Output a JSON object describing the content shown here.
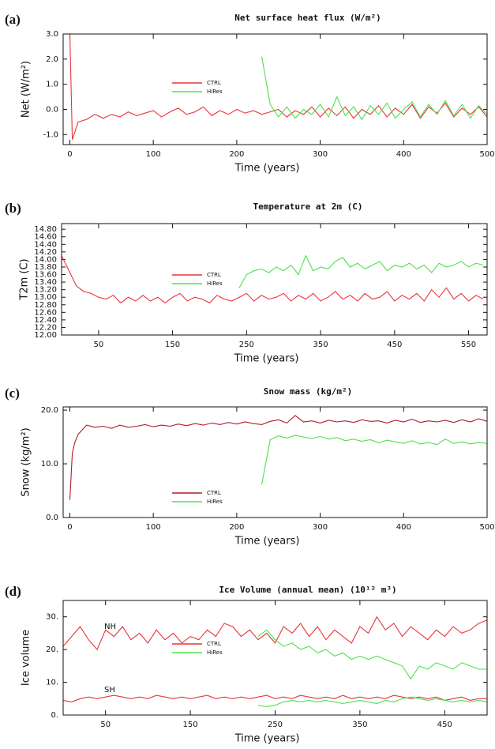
{
  "chart_data": [
    {
      "type": "line",
      "label": "(a)",
      "title": "Net surface heat flux (W/m²)",
      "ylabel": "Net (W/m²)",
      "xlabel": "Time (years)",
      "x": [
        0,
        3,
        6,
        10,
        20,
        30,
        40,
        50,
        60,
        70,
        80,
        90,
        100,
        110,
        120,
        130,
        140,
        150,
        160,
        170,
        180,
        190,
        200,
        210,
        220,
        230,
        240,
        250,
        260,
        270,
        280,
        290,
        300,
        310,
        320,
        330,
        340,
        350,
        360,
        370,
        380,
        390,
        400,
        410,
        420,
        430,
        440,
        450,
        460,
        470,
        480,
        490,
        500
      ],
      "xlim": [
        -8,
        500
      ],
      "xticks": [
        0,
        100,
        200,
        300,
        400,
        500
      ],
      "ylim": [
        -1.4,
        3.0
      ],
      "yticks": [
        {
          "value": -1,
          "label": "-1.0"
        },
        {
          "value": 0,
          "label": "0.0"
        },
        {
          "value": 1,
          "label": "1.0"
        },
        {
          "value": 2,
          "label": "2.0"
        },
        {
          "value": 3,
          "label": "3.0"
        }
      ],
      "series": [
        {
          "name": "CTRL",
          "color": "#e8343a",
          "values": [
            3.0,
            -1.2,
            -0.9,
            -0.5,
            -0.4,
            -0.2,
            -0.35,
            -0.2,
            -0.3,
            -0.1,
            -0.25,
            -0.15,
            -0.05,
            -0.3,
            -0.1,
            0.05,
            -0.2,
            -0.1,
            0.1,
            -0.25,
            -0.05,
            -0.2,
            0.0,
            -0.15,
            -0.05,
            -0.2,
            -0.1,
            0.0,
            -0.3,
            -0.05,
            -0.2,
            0.1,
            -0.3,
            0.05,
            -0.25,
            0.1,
            -0.35,
            0.0,
            -0.2,
            0.15,
            -0.3,
            0.05,
            -0.2,
            0.2,
            -0.35,
            0.1,
            -0.15,
            0.25,
            -0.3,
            0.05,
            -0.2,
            0.1,
            -0.3
          ]
        },
        {
          "name": "HiRes",
          "color": "#4ee04e",
          "values": [
            null,
            null,
            null,
            null,
            null,
            null,
            null,
            null,
            null,
            null,
            null,
            null,
            null,
            null,
            null,
            null,
            null,
            null,
            null,
            null,
            null,
            null,
            null,
            null,
            null,
            2.1,
            0.2,
            -0.3,
            0.1,
            -0.35,
            0.0,
            -0.2,
            0.2,
            -0.3,
            0.5,
            -0.25,
            0.1,
            -0.4,
            0.15,
            -0.2,
            0.25,
            -0.35,
            0.0,
            0.3,
            -0.3,
            0.2,
            -0.2,
            0.35,
            -0.25,
            0.2,
            -0.35,
            0.15,
            -0.2
          ]
        }
      ]
    },
    {
      "type": "line",
      "label": "(b)",
      "title": "Temperature at 2m (C)",
      "ylabel": "T2m (C)",
      "xlabel": "Time (years)",
      "x": [
        0,
        5,
        10,
        20,
        30,
        40,
        50,
        60,
        70,
        80,
        90,
        100,
        110,
        120,
        130,
        140,
        150,
        160,
        170,
        180,
        190,
        200,
        210,
        220,
        230,
        240,
        250,
        260,
        270,
        280,
        290,
        300,
        310,
        320,
        330,
        340,
        350,
        360,
        370,
        380,
        390,
        400,
        410,
        420,
        430,
        440,
        450,
        460,
        470,
        480,
        490,
        500,
        510,
        520,
        530,
        540,
        550,
        560,
        570
      ],
      "xlim": [
        0,
        575
      ],
      "xticks": [
        50,
        150,
        250,
        350,
        450,
        550
      ],
      "ylim": [
        12.0,
        14.95
      ],
      "yticks": [
        {
          "value": 12.0,
          "label": "12.00"
        },
        {
          "value": 12.2,
          "label": "12.20"
        },
        {
          "value": 12.4,
          "label": "12.40"
        },
        {
          "value": 12.6,
          "label": "12.60"
        },
        {
          "value": 12.8,
          "label": "12.80"
        },
        {
          "value": 13.0,
          "label": "13.00"
        },
        {
          "value": 13.2,
          "label": "13.20"
        },
        {
          "value": 13.4,
          "label": "13.40"
        },
        {
          "value": 13.6,
          "label": "13.60"
        },
        {
          "value": 13.8,
          "label": "13.80"
        },
        {
          "value": 14.0,
          "label": "14.00"
        },
        {
          "value": 14.2,
          "label": "14.20"
        },
        {
          "value": 14.4,
          "label": "14.40"
        },
        {
          "value": 14.6,
          "label": "14.60"
        },
        {
          "value": 14.8,
          "label": "14.80"
        }
      ],
      "series": [
        {
          "name": "CTRL",
          "color": "#e8343a",
          "values": [
            14.1,
            13.9,
            13.7,
            13.3,
            13.15,
            13.1,
            13.0,
            12.95,
            13.05,
            12.85,
            13.0,
            12.9,
            13.05,
            12.9,
            13.0,
            12.85,
            13.0,
            13.1,
            12.9,
            13.0,
            12.95,
            12.85,
            13.05,
            12.95,
            12.9,
            13.0,
            13.1,
            12.9,
            13.05,
            12.95,
            13.0,
            13.1,
            12.9,
            13.05,
            12.95,
            13.1,
            12.9,
            13.0,
            13.15,
            12.95,
            13.05,
            12.9,
            13.1,
            12.95,
            13.0,
            13.15,
            12.9,
            13.05,
            12.95,
            13.1,
            12.9,
            13.2,
            13.0,
            13.25,
            12.95,
            13.1,
            12.9,
            13.05,
            12.95
          ]
        },
        {
          "name": "HiRes",
          "color": "#4ee04e",
          "values": [
            null,
            null,
            null,
            null,
            null,
            null,
            null,
            null,
            null,
            null,
            null,
            null,
            null,
            null,
            null,
            null,
            null,
            null,
            null,
            null,
            null,
            null,
            null,
            null,
            null,
            13.25,
            13.6,
            13.7,
            13.75,
            13.65,
            13.8,
            13.7,
            13.85,
            13.6,
            14.1,
            13.7,
            13.8,
            13.75,
            13.95,
            14.05,
            13.8,
            13.9,
            13.75,
            13.85,
            13.95,
            13.7,
            13.85,
            13.8,
            13.9,
            13.75,
            13.85,
            13.65,
            13.9,
            13.8,
            13.85,
            13.95,
            13.8,
            13.9,
            13.85
          ]
        }
      ]
    },
    {
      "type": "line",
      "label": "(c)",
      "title": "Snow mass (kg/m²)",
      "ylabel": "Snow (kg/m²)",
      "xlabel": "Time (years)",
      "x": [
        0,
        3,
        6,
        10,
        20,
        30,
        40,
        50,
        60,
        70,
        80,
        90,
        100,
        110,
        120,
        130,
        140,
        150,
        160,
        170,
        180,
        190,
        200,
        210,
        220,
        230,
        240,
        250,
        260,
        270,
        280,
        290,
        300,
        310,
        320,
        330,
        340,
        350,
        360,
        370,
        380,
        390,
        400,
        410,
        420,
        430,
        440,
        450,
        460,
        470,
        480,
        490,
        500
      ],
      "xlim": [
        -8,
        500
      ],
      "xticks": [
        0,
        100,
        200,
        300,
        400,
        500
      ],
      "ylim": [
        0,
        20.6
      ],
      "yticks": [
        {
          "value": 0,
          "label": "0.0"
        },
        {
          "value": 10,
          "label": "10.0"
        },
        {
          "value": 20,
          "label": "20.0"
        }
      ],
      "series": [
        {
          "name": "CTRL",
          "color": "#b01c2a",
          "values": [
            3.3,
            12.0,
            14.0,
            15.5,
            17.2,
            16.8,
            17.0,
            16.6,
            17.2,
            16.8,
            17.0,
            17.3,
            16.9,
            17.2,
            17.0,
            17.4,
            17.1,
            17.5,
            17.2,
            17.6,
            17.3,
            17.7,
            17.4,
            17.8,
            17.5,
            17.3,
            17.9,
            18.2,
            17.6,
            19.0,
            17.8,
            18.0,
            17.6,
            18.1,
            17.8,
            18.0,
            17.7,
            18.2,
            17.9,
            18.0,
            17.6,
            18.1,
            17.8,
            18.3,
            17.7,
            18.0,
            17.8,
            18.1,
            17.7,
            18.2,
            17.8,
            18.4,
            17.9
          ]
        },
        {
          "name": "HiRes",
          "color": "#4ee04e",
          "values": [
            null,
            null,
            null,
            null,
            null,
            null,
            null,
            null,
            null,
            null,
            null,
            null,
            null,
            null,
            null,
            null,
            null,
            null,
            null,
            null,
            null,
            null,
            null,
            null,
            null,
            6.2,
            14.5,
            15.2,
            14.8,
            15.3,
            15.0,
            14.7,
            15.1,
            14.6,
            14.9,
            14.3,
            14.6,
            14.2,
            14.5,
            13.9,
            14.4,
            14.1,
            13.8,
            14.3,
            13.7,
            14.0,
            13.6,
            14.6,
            13.8,
            14.1,
            13.7,
            14.0,
            13.8
          ]
        }
      ]
    },
    {
      "type": "line",
      "label": "(d)",
      "title": "Ice Volume (annual mean) (10¹² m³)",
      "ylabel": "Ice volume",
      "xlabel": "Time (years)",
      "annotations": [
        "NH",
        "SH"
      ],
      "x": [
        0,
        10,
        20,
        30,
        40,
        50,
        60,
        70,
        80,
        90,
        100,
        110,
        120,
        130,
        140,
        150,
        160,
        170,
        180,
        190,
        200,
        210,
        220,
        230,
        240,
        250,
        260,
        270,
        280,
        290,
        300,
        310,
        320,
        330,
        340,
        350,
        360,
        370,
        380,
        390,
        400,
        410,
        420,
        430,
        440,
        450,
        460,
        470,
        480,
        490,
        500
      ],
      "xlim": [
        0,
        500
      ],
      "xticks": [
        50,
        150,
        250,
        350,
        450
      ],
      "ylim": [
        0,
        35
      ],
      "yticks": [
        {
          "value": 0,
          "label": "0."
        },
        {
          "value": 10,
          "label": "10."
        },
        {
          "value": 20,
          "label": "20."
        },
        {
          "value": 30,
          "label": "30."
        }
      ],
      "series": [
        {
          "name": "CTRL",
          "color": "#e8343a",
          "values": [
            21,
            24,
            27,
            23,
            20,
            26,
            24,
            27,
            23,
            25,
            22,
            26,
            23,
            25,
            22,
            24,
            23,
            26,
            24,
            28,
            27,
            24,
            26,
            23,
            25,
            22,
            27,
            25,
            28,
            24,
            27,
            23,
            26,
            24,
            22,
            27,
            25,
            30,
            26,
            28,
            24,
            27,
            25,
            23,
            26,
            24,
            27,
            25,
            26,
            28,
            29
          ]
        },
        {
          "name": "HiRes",
          "color": "#4ee04e",
          "values": [
            null,
            null,
            null,
            null,
            null,
            null,
            null,
            null,
            null,
            null,
            null,
            null,
            null,
            null,
            null,
            null,
            null,
            null,
            null,
            null,
            null,
            null,
            null,
            24,
            26,
            23,
            21,
            22,
            20,
            21,
            19,
            20,
            18,
            19,
            17,
            18,
            17,
            18,
            17,
            16,
            15,
            11,
            15,
            14,
            16,
            15,
            14,
            16,
            15,
            14,
            14
          ]
        },
        {
          "name": "CTRL",
          "color": "#e8343a",
          "values": [
            4.5,
            4,
            5,
            5.5,
            5,
            5.5,
            6,
            5.5,
            5,
            5.5,
            5,
            6,
            5.5,
            5,
            5.5,
            5,
            5.5,
            6,
            5,
            5.5,
            5,
            5.5,
            5,
            5.5,
            6,
            5,
            5.5,
            5,
            6,
            5.5,
            5,
            5.5,
            5,
            6,
            5,
            5.5,
            5,
            5.5,
            5,
            6,
            5.5,
            5,
            5.5,
            5,
            5.5,
            4.5,
            5,
            5.5,
            4.5,
            5,
            5
          ]
        },
        {
          "name": "HiRes",
          "color": "#4ee04e",
          "values": [
            null,
            null,
            null,
            null,
            null,
            null,
            null,
            null,
            null,
            null,
            null,
            null,
            null,
            null,
            null,
            null,
            null,
            null,
            null,
            null,
            null,
            null,
            null,
            3,
            2.5,
            3,
            4,
            4.5,
            4,
            4.5,
            4,
            4.5,
            4,
            3.5,
            4,
            4.5,
            4,
            3.5,
            4.5,
            4,
            5,
            5.5,
            5,
            4.5,
            5,
            4.5,
            4,
            4.5,
            4,
            4.5,
            4
          ]
        }
      ]
    }
  ]
}
